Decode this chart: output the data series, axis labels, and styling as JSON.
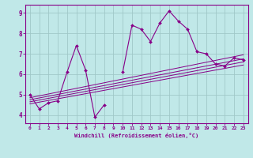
{
  "xlabel": "Windchill (Refroidissement éolien,°C)",
  "bg_color": "#c0e8e8",
  "grid_color": "#a0c8c8",
  "line_color": "#880088",
  "spine_color": "#880088",
  "xlim": [
    -0.5,
    23.5
  ],
  "ylim": [
    3.6,
    9.4
  ],
  "xticks": [
    0,
    1,
    2,
    3,
    4,
    5,
    6,
    7,
    8,
    9,
    10,
    11,
    12,
    13,
    14,
    15,
    16,
    17,
    18,
    19,
    20,
    21,
    22,
    23
  ],
  "yticks": [
    4,
    5,
    6,
    7,
    8,
    9
  ],
  "main_x": [
    0,
    1,
    2,
    3,
    4,
    5,
    6,
    7,
    8,
    9,
    10,
    11,
    12,
    13,
    14,
    15,
    16,
    17,
    18,
    19,
    20,
    21,
    22,
    23
  ],
  "main_y": [
    5.0,
    4.3,
    4.6,
    4.7,
    6.1,
    7.4,
    6.2,
    3.9,
    4.5,
    null,
    6.1,
    8.4,
    8.2,
    7.6,
    8.5,
    9.1,
    8.6,
    8.2,
    7.1,
    7.0,
    6.5,
    6.4,
    6.8,
    6.7
  ],
  "linear_lines": [
    {
      "x": [
        0,
        23
      ],
      "y": [
        4.55,
        6.45
      ]
    },
    {
      "x": [
        0,
        23
      ],
      "y": [
        4.65,
        6.6
      ]
    },
    {
      "x": [
        0,
        23
      ],
      "y": [
        4.75,
        6.75
      ]
    },
    {
      "x": [
        0,
        23
      ],
      "y": [
        4.85,
        6.95
      ]
    }
  ]
}
